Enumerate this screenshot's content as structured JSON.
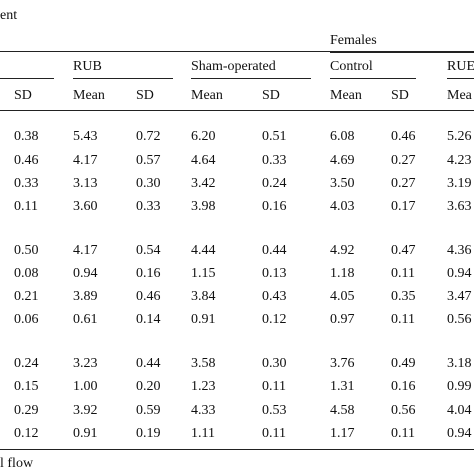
{
  "caption_fragment": "ent",
  "footer_fragment": "l flow",
  "group_header": {
    "females": "Females"
  },
  "sub_headers": {
    "left_sd_col": "",
    "rub": "RUB",
    "sham": "Sham-operated",
    "control": "Control",
    "rub_right": "RUE"
  },
  "col_headers": [
    "SD",
    "Mean",
    "SD",
    "Mean",
    "SD",
    "Mean",
    "SD",
    "Mea"
  ],
  "rows": [
    [
      "0.38",
      "5.43",
      "0.72",
      "6.20",
      "0.51",
      "6.08",
      "0.46",
      "5.26"
    ],
    [
      "0.46",
      "4.17",
      "0.57",
      "4.64",
      "0.33",
      "4.69",
      "0.27",
      "4.23"
    ],
    [
      "0.33",
      "3.13",
      "0.30",
      "3.42",
      "0.24",
      "3.50",
      "0.27",
      "3.19"
    ],
    [
      "0.11",
      "3.60",
      "0.33",
      "3.98",
      "0.16",
      "4.03",
      "0.17",
      "3.63"
    ],
    [
      "0.50",
      "4.17",
      "0.54",
      "4.44",
      "0.44",
      "4.92",
      "0.47",
      "4.36"
    ],
    [
      "0.08",
      "0.94",
      "0.16",
      "1.15",
      "0.13",
      "1.18",
      "0.11",
      "0.94"
    ],
    [
      "0.21",
      "3.89",
      "0.46",
      "3.84",
      "0.43",
      "4.05",
      "0.35",
      "3.47"
    ],
    [
      "0.06",
      "0.61",
      "0.14",
      "0.91",
      "0.12",
      "0.97",
      "0.11",
      "0.56"
    ],
    [
      "0.24",
      "3.23",
      "0.44",
      "3.58",
      "0.30",
      "3.76",
      "0.49",
      "3.18"
    ],
    [
      "0.15",
      "1.00",
      "0.20",
      "1.23",
      "0.11",
      "1.31",
      "0.16",
      "0.99"
    ],
    [
      "0.29",
      "3.92",
      "0.59",
      "4.33",
      "0.53",
      "4.58",
      "0.56",
      "4.04"
    ],
    [
      "0.12",
      "0.91",
      "0.19",
      "1.11",
      "0.11",
      "1.17",
      "0.11",
      "0.94"
    ]
  ]
}
